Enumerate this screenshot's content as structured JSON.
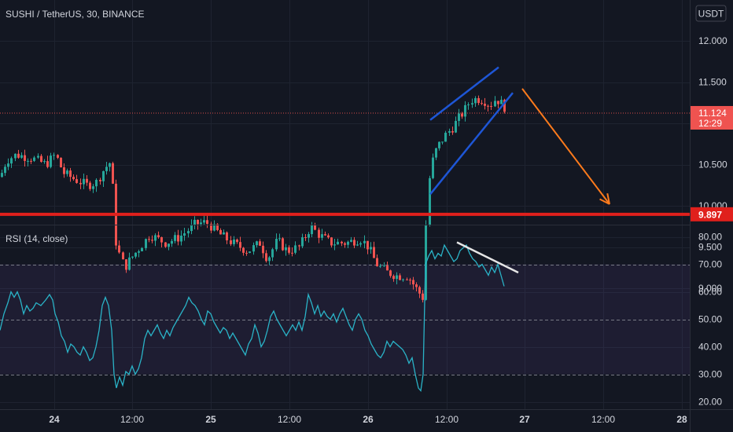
{
  "header": {
    "symbol_line": "SUSHI / TetherUS, 30, BINANCE",
    "currency_button": "USDT"
  },
  "colors": {
    "background": "#131722",
    "grid": "#1e2330",
    "candle_up": "#26a69a",
    "candle_down": "#ef5350",
    "support_line": "#e0201c",
    "channel": "#1e56d6",
    "arrow": "#ff7b1c",
    "rsi_line": "#2ab3c7",
    "rsi_band": "#7e57c2",
    "trend_white": "#e6e6e6",
    "price_label_bg": "#ef5350"
  },
  "chart_data": [
    {
      "type": "candlestick",
      "title": "SUSHI / TetherUS, 30, BINANCE",
      "ylim": [
        8.85,
        12.35
      ],
      "y_ticks": [
        "12.000",
        "11.500",
        "10.500",
        "9.500",
        "9.000"
      ],
      "current_price_label": "11.124",
      "countdown_label": "12:29",
      "level_price_label": "9.897",
      "level_price": 9.897,
      "current_price": 11.124,
      "price_path": [
        [
          0,
          10.35
        ],
        [
          8,
          10.55
        ],
        [
          20,
          10.62
        ],
        [
          40,
          10.58
        ],
        [
          58,
          10.5
        ],
        [
          70,
          10.62
        ],
        [
          80,
          10.4
        ],
        [
          95,
          10.32
        ],
        [
          110,
          10.25
        ],
        [
          122,
          10.28
        ],
        [
          132,
          10.45
        ],
        [
          142,
          10.55
        ],
        [
          145,
          9.65
        ],
        [
          150,
          9.45
        ],
        [
          158,
          9.25
        ],
        [
          165,
          9.35
        ],
        [
          178,
          9.5
        ],
        [
          190,
          9.65
        ],
        [
          210,
          9.55
        ],
        [
          228,
          9.62
        ],
        [
          248,
          9.78
        ],
        [
          262,
          9.8
        ],
        [
          280,
          9.65
        ],
        [
          295,
          9.55
        ],
        [
          315,
          9.45
        ],
        [
          330,
          9.55
        ],
        [
          340,
          9.35
        ],
        [
          352,
          9.58
        ],
        [
          365,
          9.45
        ],
        [
          380,
          9.5
        ],
        [
          395,
          9.75
        ],
        [
          405,
          9.65
        ],
        [
          420,
          9.55
        ],
        [
          440,
          9.55
        ],
        [
          458,
          9.6
        ],
        [
          468,
          9.5
        ],
        [
          478,
          9.3
        ],
        [
          490,
          9.2
        ],
        [
          505,
          9.15
        ],
        [
          518,
          9.15
        ],
        [
          530,
          8.98
        ],
        [
          538,
          8.88
        ],
        [
          543,
          10.15
        ],
        [
          548,
          10.5
        ],
        [
          555,
          10.7
        ],
        [
          562,
          10.8
        ],
        [
          568,
          10.88
        ],
        [
          575,
          10.95
        ],
        [
          582,
          11.05
        ],
        [
          590,
          11.15
        ],
        [
          598,
          11.28
        ],
        [
          606,
          11.3
        ],
        [
          615,
          11.28
        ],
        [
          623,
          11.22
        ],
        [
          630,
          11.3
        ],
        [
          636,
          11.25
        ],
        [
          641,
          11.2
        ],
        [
          645,
          11.1
        ]
      ],
      "horizontal_level": {
        "price": 9.897
      },
      "channel_lines": [
        {
          "from": [
            547,
            11.04
          ],
          "to": [
            634,
            11.68
          ]
        },
        {
          "from": [
            547,
            10.14
          ],
          "to": [
            652,
            11.37
          ]
        }
      ],
      "projection_arrow": {
        "from": [
          664,
          11.42
        ],
        "to": [
          775,
          10.02
        ]
      }
    },
    {
      "type": "line",
      "title": "RSI (14, close)",
      "ylim": [
        20,
        80
      ],
      "y_ticks": [
        "80.00",
        "70.00",
        "60.00",
        "50.00",
        "40.00",
        "30.00",
        "20.00"
      ],
      "band": [
        30,
        70
      ],
      "dashed_levels": [
        70,
        50,
        30
      ],
      "values": [
        [
          0,
          46
        ],
        [
          5,
          52
        ],
        [
          10,
          56
        ],
        [
          14,
          60
        ],
        [
          18,
          58
        ],
        [
          22,
          60
        ],
        [
          26,
          57
        ],
        [
          30,
          52
        ],
        [
          34,
          55
        ],
        [
          38,
          53
        ],
        [
          42,
          54
        ],
        [
          46,
          56
        ],
        [
          52,
          55
        ],
        [
          58,
          57
        ],
        [
          63,
          59
        ],
        [
          67,
          57
        ],
        [
          70,
          52
        ],
        [
          74,
          49
        ],
        [
          78,
          44
        ],
        [
          82,
          42
        ],
        [
          86,
          38
        ],
        [
          90,
          41
        ],
        [
          94,
          40
        ],
        [
          98,
          38
        ],
        [
          102,
          37
        ],
        [
          106,
          40
        ],
        [
          110,
          38
        ],
        [
          114,
          35
        ],
        [
          118,
          36
        ],
        [
          122,
          40
        ],
        [
          126,
          46
        ],
        [
          130,
          55
        ],
        [
          134,
          58
        ],
        [
          138,
          55
        ],
        [
          142,
          46
        ],
        [
          145,
          30
        ],
        [
          148,
          25
        ],
        [
          152,
          29
        ],
        [
          156,
          26
        ],
        [
          160,
          31
        ],
        [
          164,
          30
        ],
        [
          168,
          33
        ],
        [
          172,
          30
        ],
        [
          176,
          32
        ],
        [
          180,
          36
        ],
        [
          184,
          43
        ],
        [
          188,
          46
        ],
        [
          192,
          44
        ],
        [
          196,
          46
        ],
        [
          200,
          48
        ],
        [
          204,
          45
        ],
        [
          208,
          43
        ],
        [
          212,
          46
        ],
        [
          216,
          44
        ],
        [
          220,
          47
        ],
        [
          224,
          49
        ],
        [
          228,
          51
        ],
        [
          232,
          53
        ],
        [
          236,
          55
        ],
        [
          240,
          58
        ],
        [
          244,
          56
        ],
        [
          248,
          55
        ],
        [
          252,
          53
        ],
        [
          256,
          50
        ],
        [
          260,
          48
        ],
        [
          264,
          53
        ],
        [
          268,
          52
        ],
        [
          272,
          49
        ],
        [
          276,
          47
        ],
        [
          280,
          45
        ],
        [
          284,
          47
        ],
        [
          288,
          46
        ],
        [
          292,
          43
        ],
        [
          296,
          45
        ],
        [
          300,
          43
        ],
        [
          304,
          41
        ],
        [
          308,
          39
        ],
        [
          312,
          37
        ],
        [
          316,
          41
        ],
        [
          320,
          43
        ],
        [
          324,
          48
        ],
        [
          328,
          45
        ],
        [
          332,
          40
        ],
        [
          336,
          42
        ],
        [
          340,
          46
        ],
        [
          344,
          51
        ],
        [
          348,
          53
        ],
        [
          352,
          50
        ],
        [
          356,
          48
        ],
        [
          360,
          46
        ],
        [
          364,
          44
        ],
        [
          368,
          46
        ],
        [
          372,
          48
        ],
        [
          376,
          46
        ],
        [
          380,
          49
        ],
        [
          384,
          46
        ],
        [
          388,
          51
        ],
        [
          392,
          59
        ],
        [
          396,
          56
        ],
        [
          400,
          52
        ],
        [
          404,
          55
        ],
        [
          408,
          51
        ],
        [
          412,
          53
        ],
        [
          416,
          51
        ],
        [
          420,
          50
        ],
        [
          424,
          52
        ],
        [
          428,
          49
        ],
        [
          432,
          52
        ],
        [
          436,
          54
        ],
        [
          440,
          51
        ],
        [
          444,
          48
        ],
        [
          448,
          46
        ],
        [
          452,
          50
        ],
        [
          456,
          52
        ],
        [
          460,
          50
        ],
        [
          464,
          46
        ],
        [
          468,
          44
        ],
        [
          472,
          41
        ],
        [
          476,
          39
        ],
        [
          480,
          37
        ],
        [
          484,
          36
        ],
        [
          488,
          38
        ],
        [
          492,
          42
        ],
        [
          496,
          40
        ],
        [
          500,
          42
        ],
        [
          504,
          41
        ],
        [
          508,
          40
        ],
        [
          512,
          39
        ],
        [
          516,
          37
        ],
        [
          520,
          34
        ],
        [
          524,
          36
        ],
        [
          528,
          30
        ],
        [
          532,
          25
        ],
        [
          535,
          24
        ],
        [
          538,
          30
        ],
        [
          541,
          70
        ],
        [
          545,
          73
        ],
        [
          549,
          75
        ],
        [
          553,
          72
        ],
        [
          557,
          74
        ],
        [
          561,
          73
        ],
        [
          565,
          77
        ],
        [
          569,
          75
        ],
        [
          573,
          73
        ],
        [
          577,
          71
        ],
        [
          581,
          72
        ],
        [
          585,
          75
        ],
        [
          589,
          76
        ],
        [
          593,
          77
        ],
        [
          597,
          74
        ],
        [
          601,
          72
        ],
        [
          605,
          71
        ],
        [
          609,
          69
        ],
        [
          613,
          70
        ],
        [
          617,
          68
        ],
        [
          621,
          66
        ],
        [
          625,
          69
        ],
        [
          629,
          67
        ],
        [
          633,
          70
        ],
        [
          637,
          66
        ],
        [
          641,
          62
        ]
      ],
      "trend_line": {
        "from": [
          581,
          78
        ],
        "to": [
          659,
          67
        ]
      }
    }
  ],
  "x_axis": {
    "ticks": [
      "24",
      "12:00",
      "25",
      "12:00",
      "26",
      "12:00",
      "27",
      "12:00",
      "28"
    ],
    "bold_ticks": [
      "24",
      "25",
      "26",
      "27",
      "28"
    ]
  }
}
